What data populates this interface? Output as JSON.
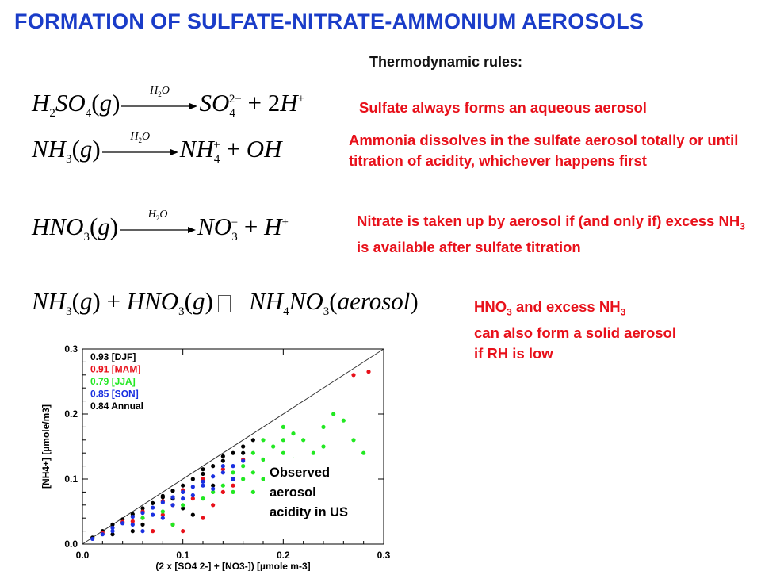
{
  "title": "FORMATION OF SULFATE-NITRATE-AMMONIUM AEROSOLS",
  "subtitle": "Thermodynamic rules:",
  "arrow_label": "O",
  "rules": [
    {
      "text": "Sulfate always forms an aqueous aerosol"
    },
    {
      "text": "Ammonia dissolves in the sulfate aerosol totally or until titration of acidity, whichever happens first"
    },
    {
      "text_a": "Nitrate is taken up by aerosol if (and only if) excess NH",
      "sub": "3",
      "text_b": " is available after sulfate titration"
    },
    {
      "text_a": "HNO",
      "sub_a": "3",
      "text_b": " and excess NH",
      "sub_b": "3",
      "text_c": "can also form a solid aerosol",
      "text_d": "if RH is low"
    }
  ],
  "chart_data": {
    "type": "scatter",
    "xlabel": "(2 x [SO4 2-] + [NO3-]) [µmole m-3]",
    "ylabel": "[NH4+] [µmole/m3]",
    "xlim": [
      0.0,
      0.3
    ],
    "ylim": [
      0.0,
      0.3
    ],
    "x_ticks": [
      "0.0",
      "0.1",
      "0.2",
      "0.3"
    ],
    "y_ticks": [
      "0.0",
      "0.1",
      "0.2",
      "0.3"
    ],
    "annotation": "Observed aerosol acidity in US",
    "reference_line": "1:1",
    "legend": [
      {
        "value": "0.93",
        "label": "[DJF]",
        "color": "#000000"
      },
      {
        "value": "0.91",
        "label": "[MAM]",
        "color": "#e8101a"
      },
      {
        "value": "0.79",
        "label": "[JJA]",
        "color": "#22e822"
      },
      {
        "value": "0.85",
        "label": "[SON]",
        "color": "#1a30e0"
      },
      {
        "value": "0.84",
        "label": "Annual",
        "color": "#000000"
      }
    ],
    "series": [
      {
        "name": "[DJF]",
        "color": "#000000",
        "points": [
          [
            0.01,
            0.01
          ],
          [
            0.02,
            0.02
          ],
          [
            0.03,
            0.03
          ],
          [
            0.04,
            0.038
          ],
          [
            0.05,
            0.046
          ],
          [
            0.06,
            0.055
          ],
          [
            0.07,
            0.063
          ],
          [
            0.08,
            0.072
          ],
          [
            0.09,
            0.082
          ],
          [
            0.1,
            0.09
          ],
          [
            0.11,
            0.1
          ],
          [
            0.12,
            0.108
          ],
          [
            0.13,
            0.12
          ],
          [
            0.14,
            0.128
          ],
          [
            0.15,
            0.14
          ],
          [
            0.16,
            0.15
          ],
          [
            0.17,
            0.16
          ],
          [
            0.06,
            0.05
          ],
          [
            0.08,
            0.074
          ],
          [
            0.12,
            0.115
          ],
          [
            0.14,
            0.135
          ],
          [
            0.03,
            0.015
          ],
          [
            0.05,
            0.02
          ],
          [
            0.1,
            0.055
          ],
          [
            0.11,
            0.045
          ],
          [
            0.06,
            0.03
          ],
          [
            0.13,
            0.09
          ],
          [
            0.15,
            0.1
          ],
          [
            0.09,
            0.07
          ],
          [
            0.16,
            0.14
          ]
        ]
      },
      {
        "name": "[MAM]",
        "color": "#e8101a",
        "points": [
          [
            0.02,
            0.017
          ],
          [
            0.04,
            0.034
          ],
          [
            0.06,
            0.05
          ],
          [
            0.08,
            0.066
          ],
          [
            0.1,
            0.083
          ],
          [
            0.12,
            0.1
          ],
          [
            0.14,
            0.115
          ],
          [
            0.16,
            0.13
          ],
          [
            0.27,
            0.26
          ],
          [
            0.285,
            0.265
          ],
          [
            0.07,
            0.02
          ],
          [
            0.09,
            0.03
          ],
          [
            0.1,
            0.02
          ],
          [
            0.12,
            0.04
          ],
          [
            0.13,
            0.06
          ],
          [
            0.11,
            0.07
          ],
          [
            0.15,
            0.09
          ],
          [
            0.05,
            0.035
          ],
          [
            0.08,
            0.045
          ],
          [
            0.14,
            0.08
          ],
          [
            0.09,
            0.06
          ],
          [
            0.06,
            0.04
          ]
        ]
      },
      {
        "name": "[JJA]",
        "color": "#22e822",
        "points": [
          [
            0.14,
            0.09
          ],
          [
            0.15,
            0.08
          ],
          [
            0.16,
            0.12
          ],
          [
            0.17,
            0.11
          ],
          [
            0.17,
            0.14
          ],
          [
            0.18,
            0.13
          ],
          [
            0.19,
            0.15
          ],
          [
            0.2,
            0.16
          ],
          [
            0.2,
            0.14
          ],
          [
            0.21,
            0.13
          ],
          [
            0.22,
            0.12
          ],
          [
            0.23,
            0.14
          ],
          [
            0.24,
            0.18
          ],
          [
            0.25,
            0.2
          ],
          [
            0.26,
            0.19
          ],
          [
            0.27,
            0.16
          ],
          [
            0.23,
            0.11
          ],
          [
            0.18,
            0.1
          ],
          [
            0.16,
            0.1
          ],
          [
            0.15,
            0.11
          ],
          [
            0.21,
            0.17
          ],
          [
            0.22,
            0.16
          ],
          [
            0.24,
            0.15
          ],
          [
            0.28,
            0.14
          ],
          [
            0.13,
            0.08
          ],
          [
            0.12,
            0.07
          ],
          [
            0.08,
            0.05
          ],
          [
            0.09,
            0.03
          ],
          [
            0.06,
            0.04
          ],
          [
            0.19,
            0.12
          ],
          [
            0.2,
            0.11
          ],
          [
            0.17,
            0.08
          ],
          [
            0.1,
            0.06
          ],
          [
            0.18,
            0.16
          ],
          [
            0.2,
            0.18
          ]
        ]
      },
      {
        "name": "[SON]",
        "color": "#1a30e0",
        "points": [
          [
            0.01,
            0.008
          ],
          [
            0.02,
            0.015
          ],
          [
            0.03,
            0.025
          ],
          [
            0.04,
            0.032
          ],
          [
            0.05,
            0.042
          ],
          [
            0.06,
            0.048
          ],
          [
            0.07,
            0.056
          ],
          [
            0.08,
            0.064
          ],
          [
            0.09,
            0.072
          ],
          [
            0.1,
            0.08
          ],
          [
            0.11,
            0.088
          ],
          [
            0.12,
            0.096
          ],
          [
            0.13,
            0.104
          ],
          [
            0.14,
            0.11
          ],
          [
            0.15,
            0.12
          ],
          [
            0.16,
            0.128
          ],
          [
            0.05,
            0.03
          ],
          [
            0.07,
            0.045
          ],
          [
            0.09,
            0.06
          ],
          [
            0.11,
            0.075
          ],
          [
            0.13,
            0.085
          ],
          [
            0.15,
            0.1
          ],
          [
            0.1,
            0.07
          ],
          [
            0.12,
            0.09
          ],
          [
            0.08,
            0.04
          ],
          [
            0.06,
            0.02
          ],
          [
            0.14,
            0.12
          ],
          [
            0.03,
            0.02
          ]
        ]
      }
    ]
  }
}
